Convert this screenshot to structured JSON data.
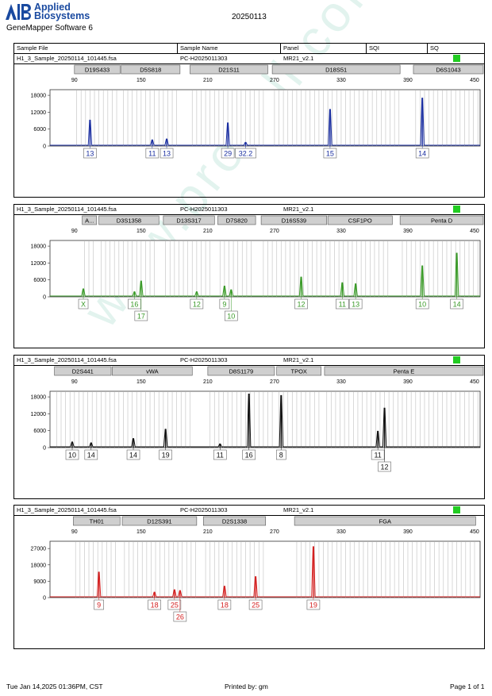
{
  "header": {
    "brand_line1": "Applied",
    "brand_line2": "Biosystems",
    "software": "GeneMapper Software 6",
    "date": "20250113"
  },
  "columns": {
    "file": "Sample File",
    "name": "Sample Name",
    "panel": "Panel",
    "sqi": "SQI",
    "sq": "SQ"
  },
  "colors": {
    "blue": "#1a2ea0",
    "green": "#3a9a28",
    "black": "#111111",
    "red": "#d42020",
    "status": "#22cc22",
    "bin": "#c8c8c8",
    "marker_fill": "#cfcfcf"
  },
  "footer": {
    "printed_at": "Tue Jan 14,2025 01:36PM, CST",
    "printed_by": "Printed by: gm",
    "page": "Page 1 of 1"
  },
  "watermark": "www.procell.com.cn",
  "chart_data": [
    {
      "type": "line",
      "dye": "blue",
      "sample_file": "H1_3_Sample_20250114_101445.fsa",
      "sample_name": "PC-H2025011303",
      "panel": "MR21_v2.1",
      "x_ticks": [
        90,
        150,
        210,
        270,
        330,
        390,
        450
      ],
      "xlim": [
        68,
        455
      ],
      "y_ticks": [
        0,
        6000,
        12000,
        18000
      ],
      "ylim": [
        0,
        20000
      ],
      "markers": [
        {
          "name": "D19S433",
          "start": 90,
          "end": 131
        },
        {
          "name": "D5S818",
          "start": 132,
          "end": 185
        },
        {
          "name": "D21S11",
          "start": 194,
          "end": 264
        },
        {
          "name": "D18S51",
          "start": 268,
          "end": 383
        },
        {
          "name": "D6S1043",
          "start": 395,
          "end": 462
        }
      ],
      "peaks": [
        {
          "size": 104,
          "height": 9200,
          "label": "13"
        },
        {
          "size": 160,
          "height": 2200,
          "label": "11"
        },
        {
          "size": 173,
          "height": 2500,
          "label": "13"
        },
        {
          "size": 228,
          "height": 8200,
          "label": "29"
        },
        {
          "size": 244,
          "height": 1300,
          "label": "32.2"
        },
        {
          "size": 320,
          "height": 13000,
          "label": "15"
        },
        {
          "size": 403,
          "height": 17000,
          "label": "14"
        }
      ]
    },
    {
      "type": "line",
      "dye": "green",
      "sample_file": "H1_3_Sample_20250114_101445.fsa",
      "sample_name": "PC-H2025011303",
      "panel": "MR21_v2.1",
      "x_ticks": [
        90,
        150,
        210,
        270,
        330,
        390,
        450
      ],
      "xlim": [
        68,
        455
      ],
      "y_ticks": [
        0,
        6000,
        12000,
        18000
      ],
      "ylim": [
        0,
        20000
      ],
      "markers": [
        {
          "name": "A...",
          "start": 97,
          "end": 110
        },
        {
          "name": "D3S1358",
          "start": 112,
          "end": 166
        },
        {
          "name": "D13S317",
          "start": 170,
          "end": 216
        },
        {
          "name": "D7S820",
          "start": 219,
          "end": 253
        },
        {
          "name": "D16S539",
          "start": 258,
          "end": 317
        },
        {
          "name": "CSF1PO",
          "start": 318,
          "end": 376
        },
        {
          "name": "Penta D",
          "start": 383,
          "end": 466
        }
      ],
      "peaks": [
        {
          "size": 98,
          "height": 2800,
          "label": "X"
        },
        {
          "size": 144,
          "height": 1800,
          "label": "16"
        },
        {
          "size": 150,
          "height": 5600,
          "label": "17"
        },
        {
          "size": 200,
          "height": 1800,
          "label": "12"
        },
        {
          "size": 225,
          "height": 3800,
          "label": "9"
        },
        {
          "size": 231,
          "height": 2500,
          "label": "10"
        },
        {
          "size": 294,
          "height": 7000,
          "label": "12"
        },
        {
          "size": 331,
          "height": 5000,
          "label": "11"
        },
        {
          "size": 343,
          "height": 4600,
          "label": "13"
        },
        {
          "size": 403,
          "height": 11000,
          "label": "10"
        },
        {
          "size": 434,
          "height": 15500,
          "label": "14"
        }
      ]
    },
    {
      "type": "line",
      "dye": "black",
      "sample_file": "H1_3_Sample_20250114_101445.fsa",
      "sample_name": "PC-H2025011303",
      "panel": "MR21_v2.1",
      "x_ticks": [
        90,
        150,
        210,
        270,
        330,
        390,
        450
      ],
      "xlim": [
        68,
        455
      ],
      "y_ticks": [
        0,
        6000,
        12000,
        18000
      ],
      "ylim": [
        0,
        20000
      ],
      "markers": [
        {
          "name": "D2S441",
          "start": 72,
          "end": 123
        },
        {
          "name": "vWA",
          "start": 124,
          "end": 196
        },
        {
          "name": "D8S1179",
          "start": 210,
          "end": 270
        },
        {
          "name": "TPOX",
          "start": 272,
          "end": 312
        },
        {
          "name": "Penta E",
          "start": 315,
          "end": 466
        }
      ],
      "peaks": [
        {
          "size": 88,
          "height": 2000,
          "label": "10"
        },
        {
          "size": 105,
          "height": 1700,
          "label": "14"
        },
        {
          "size": 143,
          "height": 3200,
          "label": "14"
        },
        {
          "size": 172,
          "height": 6500,
          "label": "19"
        },
        {
          "size": 221,
          "height": 1300,
          "label": "11"
        },
        {
          "size": 247,
          "height": 19000,
          "label": "16"
        },
        {
          "size": 276,
          "height": 18500,
          "label": "8"
        },
        {
          "size": 363,
          "height": 5800,
          "label": "11"
        },
        {
          "size": 369,
          "height": 14000,
          "label": "12"
        }
      ]
    },
    {
      "type": "line",
      "dye": "red",
      "sample_file": "H1_3_Sample_20250114_101445.fsa",
      "sample_name": "PC-H2025011303",
      "panel": "MR21_v2.1",
      "x_ticks": [
        90,
        150,
        210,
        270,
        330,
        390,
        450
      ],
      "xlim": [
        68,
        455
      ],
      "y_ticks": [
        0,
        9000,
        18000,
        27000
      ],
      "ylim": [
        0,
        31000
      ],
      "markers": [
        {
          "name": "TH01",
          "start": 89,
          "end": 131
        },
        {
          "name": "D12S391",
          "start": 133,
          "end": 200
        },
        {
          "name": "D2S1338",
          "start": 206,
          "end": 262
        },
        {
          "name": "FGA",
          "start": 288,
          "end": 451
        }
      ],
      "peaks": [
        {
          "size": 112,
          "height": 14000,
          "label": "9"
        },
        {
          "size": 162,
          "height": 3000,
          "label": "18"
        },
        {
          "size": 180,
          "height": 4300,
          "label": "25"
        },
        {
          "size": 185,
          "height": 3900,
          "label": "26"
        },
        {
          "size": 225,
          "height": 6300,
          "label": "18"
        },
        {
          "size": 253,
          "height": 11500,
          "label": "25"
        },
        {
          "size": 305,
          "height": 28000,
          "label": "19"
        }
      ]
    }
  ]
}
